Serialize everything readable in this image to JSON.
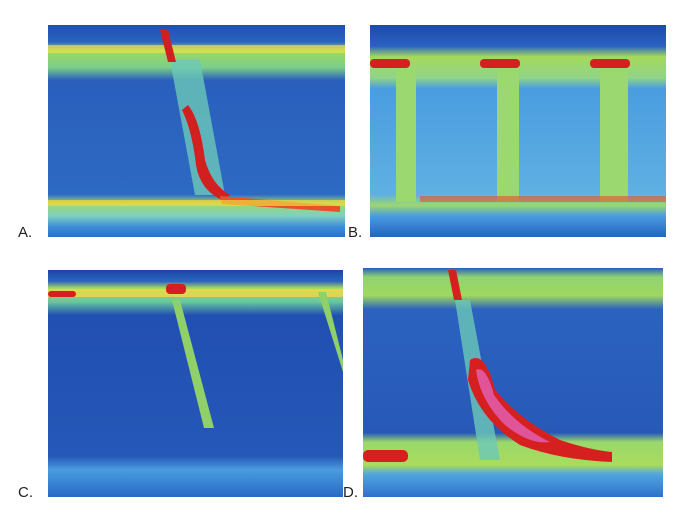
{
  "panels": [
    {
      "label": "A."
    },
    {
      "label": "B."
    },
    {
      "label": "C."
    },
    {
      "label": "D."
    }
  ]
}
